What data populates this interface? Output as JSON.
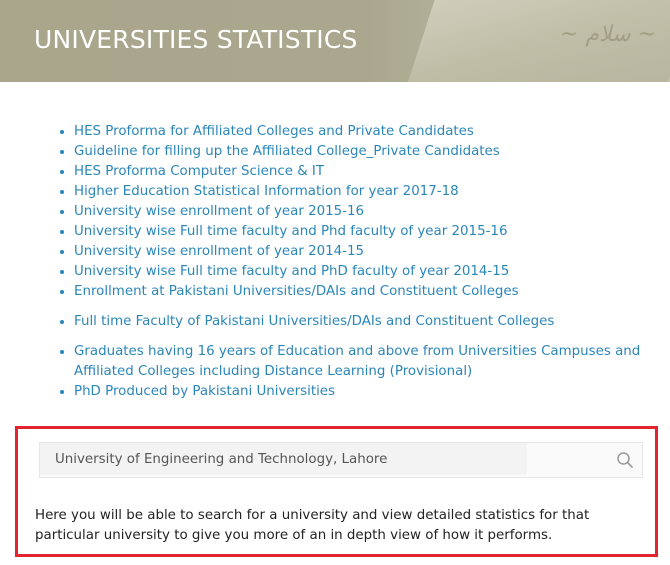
{
  "header": {
    "title": "UNIVERSITIES STATISTICS"
  },
  "links": [
    {
      "label": "HES Proforma for Affiliated Colleges and Private Candidates"
    },
    {
      "label": "Guideline for filling up the Affiliated College_Private Candidates"
    },
    {
      "label": "HES Proforma Computer Science & IT"
    },
    {
      "label": "Higher Education Statistical Information for year 2017-18"
    },
    {
      "label": "University wise enrollment of year 2015-16"
    },
    {
      "label": "University wise Full time faculty and Phd faculty of year 2015-16"
    },
    {
      "label": "University wise enrollment of year 2014-15"
    },
    {
      "label": "University wise Full time faculty and PhD faculty of year 2014-15"
    },
    {
      "label": "Enrollment at Pakistani Universities/DAIs and Constituent Colleges"
    },
    {
      "label": "Full time Faculty of Pakistani Universities/DAIs and Constituent Colleges"
    },
    {
      "label": "Graduates having 16 years of Education and above from Universities Campuses and Affiliated Colleges including Distance Learning (Provisional)"
    },
    {
      "label": "PhD Produced by Pakistani Universities"
    }
  ],
  "search": {
    "value": "University of Engineering and Technology, Lahore",
    "icon": "search-icon",
    "description": "Here you will be able to search for a university and view detailed statistics for that particular university to give you more of an in depth view of how it performs."
  },
  "colors": {
    "link": "#2b86b8",
    "highlight_border": "#e3232e",
    "banner": "#aaa78e"
  }
}
